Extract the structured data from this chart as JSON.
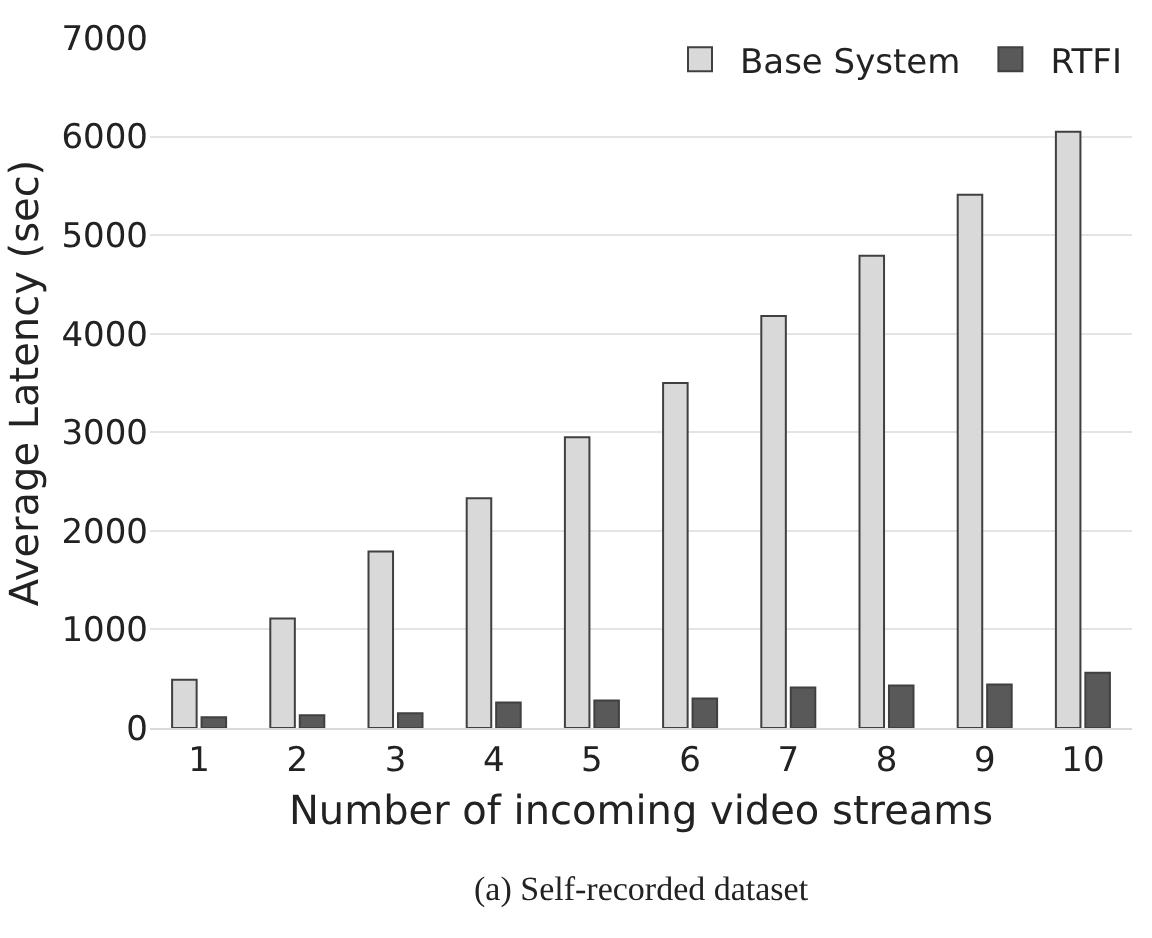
{
  "chart_data": {
    "type": "bar",
    "xlabel": "Number of incoming video streams",
    "ylabel": "Average Latency (sec)",
    "categories": [
      "1",
      "2",
      "3",
      "4",
      "5",
      "6",
      "7",
      "8",
      "9",
      "10"
    ],
    "series": [
      {
        "name": "Base System",
        "color": "#d9d9d9",
        "values": [
          490,
          1110,
          1790,
          2330,
          2950,
          3500,
          4180,
          4790,
          5410,
          6050
        ]
      },
      {
        "name": "RTFI",
        "color": "#595959",
        "values": [
          110,
          130,
          150,
          260,
          280,
          300,
          410,
          430,
          440,
          560
        ]
      }
    ],
    "ylim": [
      0,
      7000
    ],
    "yticks": [
      0,
      1000,
      2000,
      3000,
      4000,
      5000,
      6000,
      7000
    ],
    "grid": "y",
    "legend": "top right",
    "annotations": [
      "(a) Self-recorded dataset"
    ]
  }
}
